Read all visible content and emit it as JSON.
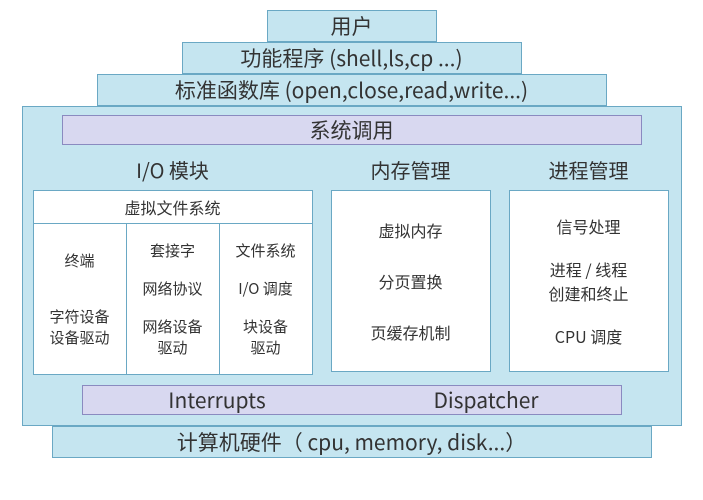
{
  "colors": {
    "blue_fill": "#c5e5f0",
    "blue_border": "#6aa8c4",
    "purple_fill": "#d8d8f0",
    "purple_border": "#8a8ac0",
    "white_fill": "#ffffff",
    "text": "#333333"
  },
  "typography": {
    "title_fontsize": 21,
    "section_fontsize": 20,
    "sub_fontsize": 16,
    "small_fontsize": 15
  },
  "layout": {
    "widths": {
      "user": 170,
      "programs": 340,
      "stdlib": 510,
      "syscall_outer": 660,
      "syscall_inner": 580,
      "bottom_inner": 540,
      "hardware": 600
    },
    "heights": {
      "thin": 32,
      "syscall_body": 280
    }
  },
  "layers": {
    "user": "用户",
    "programs": "功能程序 (shell,ls,cp ...)",
    "stdlib": "标准函数库 (open,close,read,write...)",
    "syscall_title": "系统调用",
    "hardware": "计算机硬件（ cpu, memory, disk...）"
  },
  "bottom": {
    "left": "Interrupts",
    "right": "Dispatcher"
  },
  "kernel": {
    "io": {
      "title": "I/O 模块",
      "vfs": "虚拟文件系统",
      "col1": [
        "终端",
        "字符设备\n设备驱动"
      ],
      "col2": [
        "套接字",
        "网络协议",
        "网络设备\n驱动"
      ],
      "col3": [
        "文件系统",
        "I/O 调度",
        "块设备\n驱动"
      ]
    },
    "mem": {
      "title": "内存管理",
      "items": [
        "虚拟内存",
        "分页置换",
        "页缓存机制"
      ]
    },
    "proc": {
      "title": "进程管理",
      "items": [
        "信号处理",
        "进程 / 线程\n创建和终止",
        "CPU 调度"
      ]
    }
  }
}
